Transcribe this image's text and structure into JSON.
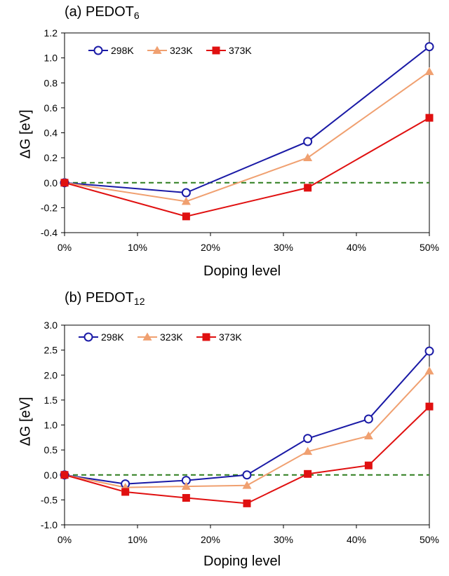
{
  "chart_data": [
    {
      "type": "line",
      "title": "(a) PEDOT",
      "title_subscript": "6",
      "xlabel": "Doping level",
      "ylabel": "ΔG [eV]",
      "xlim": [
        0,
        50
      ],
      "ylim": [
        -0.4,
        1.2
      ],
      "xticks": [
        0,
        10,
        20,
        30,
        40,
        50
      ],
      "xtick_labels": [
        "0%",
        "10%",
        "20%",
        "30%",
        "40%",
        "50%"
      ],
      "yticks": [
        -0.4,
        -0.2,
        0.0,
        0.2,
        0.4,
        0.6,
        0.8,
        1.0,
        1.2
      ],
      "ytick_labels": [
        "-0.4",
        "-0.2",
        "0.0",
        "0.2",
        "0.4",
        "0.6",
        "0.8",
        "1.0",
        "1.2"
      ],
      "reference_line": {
        "y": 0,
        "style": "dashed",
        "color": "#2e7d1f"
      },
      "legend_position": "top-left",
      "series": [
        {
          "name": "298K",
          "color": "#1a1aa6",
          "marker": "circle-open",
          "x": [
            0,
            16.67,
            33.33,
            50
          ],
          "y": [
            0.0,
            -0.08,
            0.33,
            1.09
          ]
        },
        {
          "name": "323K",
          "color": "#f0a070",
          "marker": "triangle",
          "x": [
            0,
            16.67,
            33.33,
            50
          ],
          "y": [
            0.0,
            -0.15,
            0.2,
            0.89
          ]
        },
        {
          "name": "373K",
          "color": "#e01010",
          "marker": "square",
          "x": [
            0,
            16.67,
            33.33,
            50
          ],
          "y": [
            0.0,
            -0.27,
            -0.04,
            0.52
          ]
        }
      ]
    },
    {
      "type": "line",
      "title": "(b) PEDOT",
      "title_subscript": "12",
      "xlabel": "Doping level",
      "ylabel": "ΔG [eV]",
      "xlim": [
        0,
        50
      ],
      "ylim": [
        -1.0,
        3.0
      ],
      "xticks": [
        0,
        10,
        20,
        30,
        40,
        50
      ],
      "xtick_labels": [
        "0%",
        "10%",
        "20%",
        "30%",
        "40%",
        "50%"
      ],
      "yticks": [
        -1.0,
        -0.5,
        0.0,
        0.5,
        1.0,
        1.5,
        2.0,
        2.5,
        3.0
      ],
      "ytick_labels": [
        "-1.0",
        "-0.5",
        "0.0",
        "0.5",
        "1.0",
        "1.5",
        "2.0",
        "2.5",
        "3.0"
      ],
      "reference_line": {
        "y": 0,
        "style": "dashed",
        "color": "#2e7d1f"
      },
      "legend_position": "top-left",
      "series": [
        {
          "name": "298K",
          "color": "#1a1aa6",
          "marker": "circle-open",
          "x": [
            0,
            8.33,
            16.67,
            25,
            33.33,
            41.67,
            50
          ],
          "y": [
            0.0,
            -0.18,
            -0.11,
            0.0,
            0.73,
            1.12,
            2.48
          ]
        },
        {
          "name": "323K",
          "color": "#f0a070",
          "marker": "triangle",
          "x": [
            0,
            8.33,
            16.67,
            25,
            33.33,
            41.67,
            50
          ],
          "y": [
            0.0,
            -0.25,
            -0.23,
            -0.21,
            0.47,
            0.78,
            2.08
          ]
        },
        {
          "name": "373K",
          "color": "#e01010",
          "marker": "square",
          "x": [
            0,
            8.33,
            16.67,
            25,
            33.33,
            41.67,
            50
          ],
          "y": [
            0.0,
            -0.34,
            -0.46,
            -0.57,
            0.02,
            0.19,
            1.37
          ]
        }
      ]
    }
  ]
}
